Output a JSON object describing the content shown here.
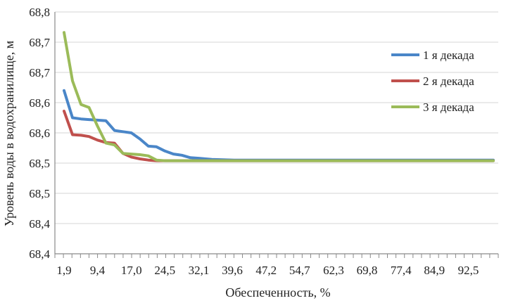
{
  "chart_data": {
    "type": "line",
    "title": "",
    "xlabel": "Обеспеченность, %",
    "ylabel": "Уровень воды в водохранилище, м",
    "y_tick_labels": [
      "68,4",
      "68,4",
      "68,5",
      "68,5",
      "68,6",
      "68,6",
      "68,7",
      "68,7",
      "68,8"
    ],
    "ylim": [
      68.4,
      68.8
    ],
    "x_tick_labels": [
      "1,9",
      "9,4",
      "17,0",
      "24,5",
      "32,1",
      "39,6",
      "47,2",
      "54,7",
      "62,3",
      "69,8",
      "77,4",
      "84,9",
      "92,5"
    ],
    "xlim": [
      1.9,
      98.1
    ],
    "grid": "horizontal",
    "legend_position": "right",
    "series": [
      {
        "name": "1 я декада",
        "color": "#4a86c8",
        "x": [
          1.9,
          3.8,
          5.7,
          7.5,
          9.4,
          11.3,
          13.2,
          15.1,
          17.0,
          18.9,
          20.8,
          22.6,
          24.5,
          26.4,
          28.3,
          30.2,
          32.1,
          35.0,
          40.0,
          98.1
        ],
        "y": [
          68.67,
          68.625,
          68.623,
          68.622,
          68.621,
          68.62,
          68.604,
          68.602,
          68.6,
          68.59,
          68.578,
          68.577,
          68.57,
          68.565,
          68.563,
          68.559,
          68.558,
          68.556,
          68.555,
          68.555
        ]
      },
      {
        "name": "2 я декада",
        "color": "#c0504d",
        "x": [
          1.9,
          3.8,
          5.7,
          7.5,
          9.4,
          11.3,
          13.2,
          15.1,
          17.0,
          18.9,
          20.8,
          22.6,
          98.1
        ],
        "y": [
          68.636,
          68.597,
          68.596,
          68.594,
          68.588,
          68.584,
          68.583,
          68.566,
          68.56,
          68.557,
          68.555,
          68.554,
          68.554
        ]
      },
      {
        "name": "3 я декада",
        "color": "#9bbb59",
        "x": [
          1.9,
          3.8,
          5.7,
          7.5,
          9.4,
          11.3,
          13.2,
          15.1,
          17.0,
          18.9,
          20.8,
          22.6,
          24.5,
          98.1
        ],
        "y": [
          68.766,
          68.686,
          68.647,
          68.642,
          68.611,
          68.583,
          68.58,
          68.566,
          68.565,
          68.564,
          68.562,
          68.555,
          68.554,
          68.554
        ]
      }
    ]
  }
}
